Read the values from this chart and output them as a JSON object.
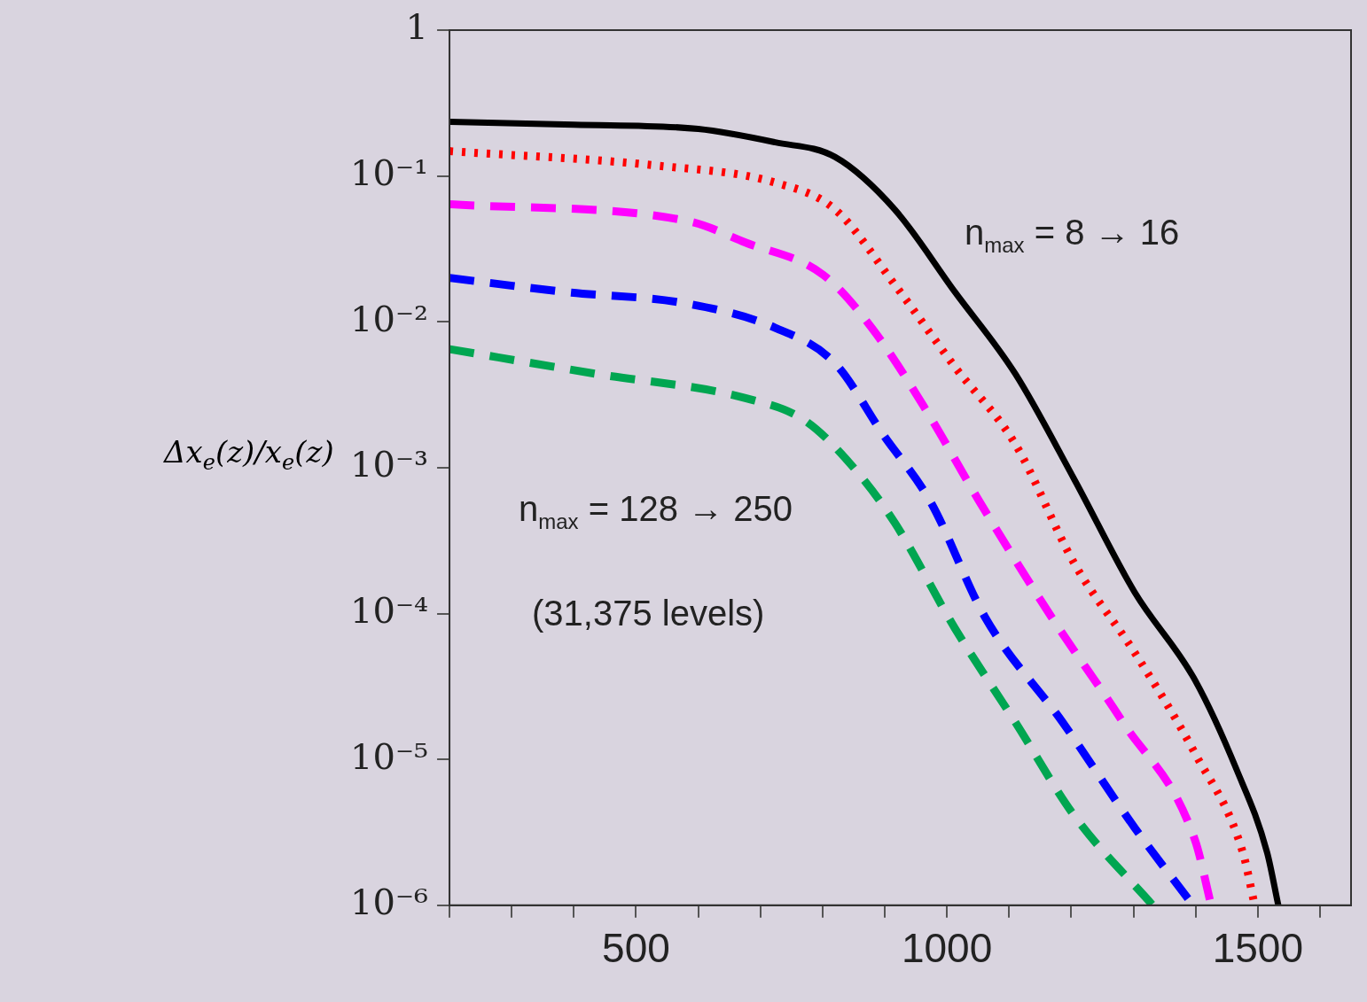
{
  "chart_data": {
    "type": "line",
    "ylabel": "Δx$_{e}$(z)/x$_{e}$(z)",
    "log": "y",
    "grid": false,
    "legend": false,
    "marker": "none",
    "annotations": [
      "n$_{max}$ = 8 → 16",
      "n$_{max}$ = 128 → 250",
      "(31,375 levels)"
    ],
    "xlim": [
      200,
      1650
    ],
    "ylim": [
      1e-06,
      1
    ],
    "xticks": [
      {
        "value": 200,
        "label": null
      },
      {
        "value": 300,
        "label": null
      },
      {
        "value": 400,
        "label": null
      },
      500,
      {
        "value": 600,
        "label": null
      },
      {
        "value": 700,
        "label": null
      },
      {
        "value": 800,
        "label": null
      },
      {
        "value": 900,
        "label": null
      },
      1000,
      {
        "value": 1100,
        "label": null
      },
      {
        "value": 1200,
        "label": null
      },
      {
        "value": 1300,
        "label": null
      },
      {
        "value": 1400,
        "label": null
      },
      1500,
      {
        "value": 1600,
        "label": null
      }
    ],
    "yticks": [
      {
        "value": 1e-06,
        "label": "10⁻⁶"
      },
      {
        "value": 1e-05,
        "label": "10⁻⁵"
      },
      {
        "value": 0.0001,
        "label": "10⁻⁴"
      },
      {
        "value": 0.001,
        "label": "10⁻³"
      },
      {
        "value": 0.01,
        "label": "10⁻²"
      },
      {
        "value": 0.1,
        "label": "10⁻¹"
      },
      1
    ],
    "series": [
      {
        "color": "#000000",
        "line_style": "solid",
        "x": [
          200,
          400,
          600,
          724,
          820,
          916,
          1013,
          1110,
          1205,
          1302,
          1399,
          1466,
          1515,
          1533
        ],
        "values": [
          0.235,
          0.225,
          0.21,
          0.17,
          0.135,
          0.059,
          0.016,
          0.0044,
          0.00083,
          0.00014,
          3.5e-05,
          8.5e-06,
          2.3e-06,
          1e-06
        ]
      },
      {
        "color": "#ff0000",
        "line_style": "dotted",
        "x": [
          200,
          532,
          724,
          820,
          916,
          1013,
          1110,
          1205,
          1302,
          1399,
          1476,
          1495
        ],
        "values": [
          0.148,
          0.118,
          0.09,
          0.059,
          0.018,
          0.0049,
          0.00145,
          0.00022,
          5.4e-05,
          1.1e-05,
          2.3e-06,
          1e-06
        ]
      },
      {
        "color": "#ff00ff",
        "line_style": "dashed",
        "x": [
          200,
          584,
          676,
          801,
          879,
          966,
          1053,
          1168,
          1283,
          1399,
          1425
        ],
        "values": [
          0.064,
          0.049,
          0.035,
          0.021,
          0.0091,
          0.0025,
          0.00058,
          9.5e-05,
          1.8e-05,
          2.8e-06,
          1e-06
        ]
      },
      {
        "color": "#0000ff",
        "line_style": "dashed",
        "x": [
          200,
          387,
          579,
          724,
          820,
          897,
          974,
          1061,
          1186,
          1302,
          1396
        ],
        "values": [
          0.02,
          0.016,
          0.0134,
          0.0091,
          0.0052,
          0.0017,
          0.00058,
          9.5e-05,
          1.8e-05,
          3.4e-06,
          1e-06
        ]
      },
      {
        "color": "#00a651",
        "line_style": "dashed",
        "x": [
          200,
          435,
          676,
          772,
          850,
          916,
          1013,
          1110,
          1205,
          1331
        ],
        "values": [
          0.0065,
          0.0044,
          0.003,
          0.0021,
          0.001,
          0.00042,
          7.9e-05,
          1.8e-05,
          4.1e-06,
          1e-06
        ]
      }
    ]
  }
}
